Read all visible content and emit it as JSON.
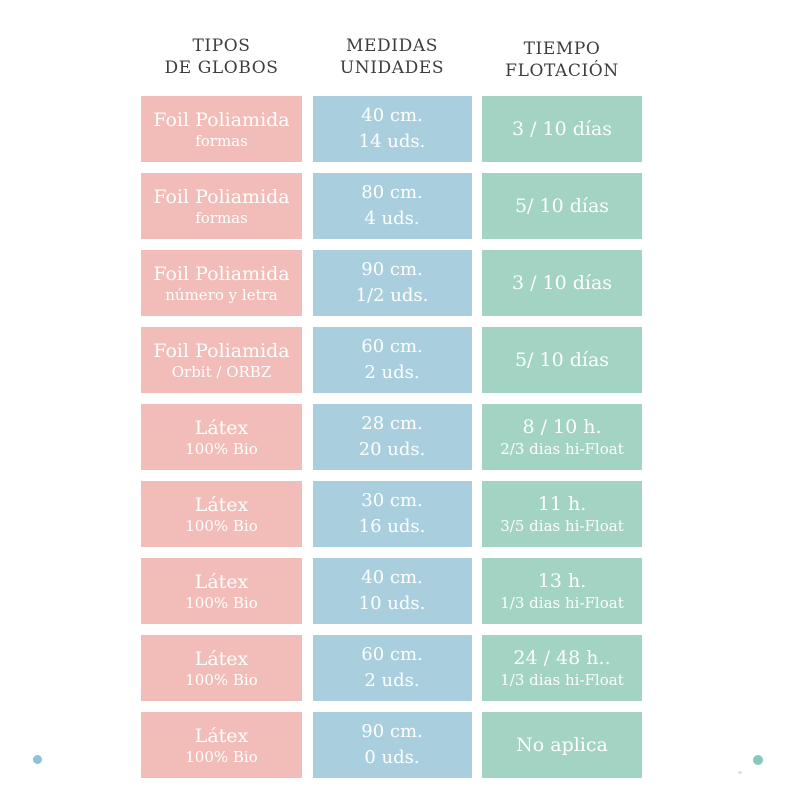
{
  "page": {
    "background": "#ffffff"
  },
  "colors": {
    "cell_pink": "#f2bdb8",
    "cell_blue": "#a9cfdf",
    "cell_green": "#a2d3c3",
    "header_text": "#3d3d3d",
    "cell_text": "#fefefe",
    "dot_left_blue": "#8cc2da",
    "dot_right_teal": "#85c8bc"
  },
  "t": {
    "headers": [
      {
        "l1": "TIPOS",
        "l2": "DE GLOBOS"
      },
      {
        "l1": "MEDIDAS",
        "l2": "UNIDADES"
      },
      {
        "l1": "TIEMPO",
        "l2": "FLOTACIÓN"
      }
    ],
    "rows": [
      {
        "tipo_l1": "Foil Poliamida",
        "tipo_l2": "formas",
        "med_l1": "40 cm.",
        "med_l2": "14 uds.",
        "tie_l1": "3 / 10 días",
        "tie_l2": ""
      },
      {
        "tipo_l1": "Foil Poliamida",
        "tipo_l2": "formas",
        "med_l1": "80 cm.",
        "med_l2": "4 uds.",
        "tie_l1": "5/ 10 días",
        "tie_l2": ""
      },
      {
        "tipo_l1": "Foil Poliamida",
        "tipo_l2": "número y letra",
        "med_l1": "90 cm.",
        "med_l2": "1/2 uds.",
        "tie_l1": "3 / 10 días",
        "tie_l2": ""
      },
      {
        "tipo_l1": "Foil Poliamida",
        "tipo_l2": "Orbit / ORBZ",
        "med_l1": "60 cm.",
        "med_l2": "2 uds.",
        "tie_l1": "5/ 10 días",
        "tie_l2": ""
      },
      {
        "tipo_l1": "Látex",
        "tipo_l2": "100% Bio",
        "med_l1": "28 cm.",
        "med_l2": "20 uds.",
        "tie_l1": "8 / 10 h.",
        "tie_l2": "2/3 dias hi-Float"
      },
      {
        "tipo_l1": "Látex",
        "tipo_l2": "100% Bio",
        "med_l1": "30 cm.",
        "med_l2": "16 uds.",
        "tie_l1": "11 h.",
        "tie_l2": "3/5 dias hi-Float"
      },
      {
        "tipo_l1": "Látex",
        "tipo_l2": "100% Bio",
        "med_l1": "40 cm.",
        "med_l2": "10 uds.",
        "tie_l1": "13 h.",
        "tie_l2": "1/3 dias hi-Float"
      },
      {
        "tipo_l1": "Látex",
        "tipo_l2": "100% Bio",
        "med_l1": "60 cm.",
        "med_l2": "2 uds.",
        "tie_l1": "24 / 48 h..",
        "tie_l2": "1/3 dias hi-Float"
      },
      {
        "tipo_l1": "Látex",
        "tipo_l2": "100% Bio",
        "med_l1": "90 cm.",
        "med_l2": "0 uds.",
        "tie_l1": "No aplica",
        "tie_l2": ""
      }
    ]
  },
  "chart_data": {
    "type": "table",
    "title": "",
    "columns": [
      "TIPOS DE GLOBOS",
      "MEDIDAS UNIDADES",
      "TIEMPO FLOTACIÓN"
    ],
    "rows": [
      [
        "Foil Poliamida — formas",
        "40 cm. / 14 uds.",
        "3 / 10 días"
      ],
      [
        "Foil Poliamida — formas",
        "80 cm. / 4 uds.",
        "5/ 10 días"
      ],
      [
        "Foil Poliamida — número y letra",
        "90 cm. / 1/2 uds.",
        "3 / 10 días"
      ],
      [
        "Foil Poliamida — Orbit / ORBZ",
        "60 cm. / 2 uds.",
        "5/ 10 días"
      ],
      [
        "Látex — 100% Bio",
        "28 cm. / 20 uds.",
        "8 / 10 h. — 2/3 dias hi-Float"
      ],
      [
        "Látex — 100% Bio",
        "30 cm. / 16 uds.",
        "11 h. — 3/5 dias hi-Float"
      ],
      [
        "Látex — 100% Bio",
        "40 cm. / 10 uds.",
        "13 h. — 1/3 dias hi-Float"
      ],
      [
        "Látex — 100% Bio",
        "60 cm. / 2 uds.",
        "24 / 48 h.. — 1/3 dias hi-Float"
      ],
      [
        "Látex — 100% Bio",
        "90 cm. / 0 uds.",
        "No aplica"
      ]
    ]
  }
}
